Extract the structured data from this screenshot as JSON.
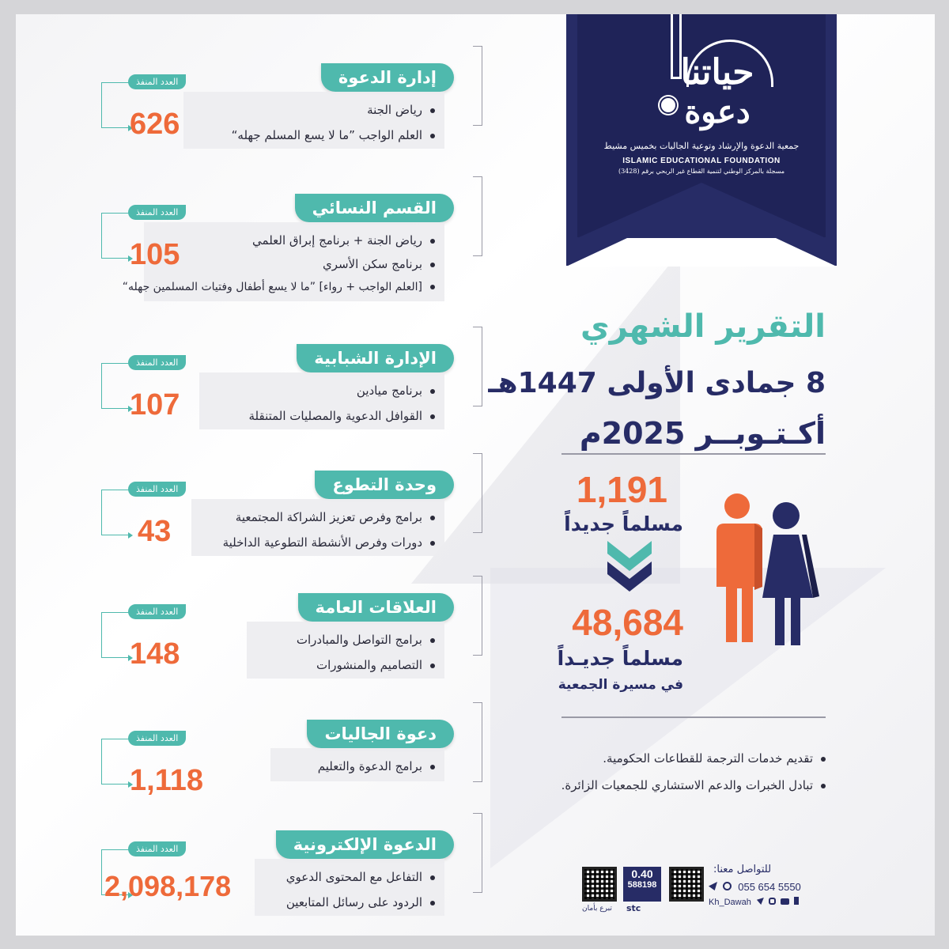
{
  "exec_label": "العدد المنفذ",
  "sections": [
    {
      "title": "إدارة الدعوة",
      "count": "626",
      "items": [
        "رياض الجنة",
        "العلم الواجب ”ما لا يسع المسلم جهله“"
      ]
    },
    {
      "title": "القسم النسائي",
      "count": "105",
      "items": [
        "رياض الجنة + برنامج إبراق العلمي",
        "برنامج سكن الأسري",
        "[العلم الواجب + رواء] ”ما لا يسع أطفال وفتيات المسلمين جهله“"
      ]
    },
    {
      "title": "الإدارة الشبابية",
      "count": "107",
      "items": [
        "برنامج ميادين",
        "القوافل الدعوية والمصليات المتنقلة"
      ]
    },
    {
      "title": "وحدة التطوع",
      "count": "43",
      "items": [
        "برامج وفرص تعزيز الشراكة المجتمعية",
        "دورات وفرص الأنشطة التطوعية الداخلية"
      ]
    },
    {
      "title": "العلاقات العامة",
      "count": "148",
      "items": [
        "برامج التواصل والمبادرات",
        "التصاميم والمنشورات"
      ]
    },
    {
      "title": "دعوة الجاليات",
      "count": "1,118",
      "items": [
        "برامج الدعوة والتعليم"
      ]
    },
    {
      "title": "الدعوة الإلكترونية",
      "count": "2,098,178",
      "items": [
        "التفاعل مع المحتوى الدعوي",
        "الردود على رسائل المتابعين"
      ]
    }
  ],
  "logo": {
    "line1": "حياتنا",
    "line2": "دعوة",
    "arabic_name": "جمعية الدعوة والإرشاد وتوعية الجاليات بخميس مشيط",
    "english_name": "ISLAMIC EDUCATIONAL FOUNDATION",
    "registration": "مسجلة بالمركز الوطني لتنمية القطاع غير الربحي برقم (3428)"
  },
  "report": {
    "title": "التقرير الشهري",
    "hijri": "8 جمادى الأولى 1447هـ",
    "gregorian": "أكـتـوبــر 2025م"
  },
  "stats": {
    "new_muslims_count": "1,191",
    "new_muslims_label": "مسلماً جديداً",
    "total_count": "48,684",
    "total_label": "مسلماً جديـداً",
    "total_sub": "في مسيرة الجمعية"
  },
  "services": [
    "تقديم خدمات الترجمة للقطاعات الحكومية.",
    "تبادل الخبرات والدعم الاستشاري للجمعيات الزائرة."
  ],
  "contact": {
    "label": "للتواصل معنا:",
    "phone": "055 654 5550",
    "handle": "Kh_Dawah",
    "stc_amount": "0.40",
    "stc_code": "588198",
    "stc_brand": "stc",
    "donate_label": "تبرع بأمان"
  },
  "colors": {
    "teal": "#4fb9ad",
    "navy": "#272c66",
    "orange": "#ee6a3a"
  }
}
